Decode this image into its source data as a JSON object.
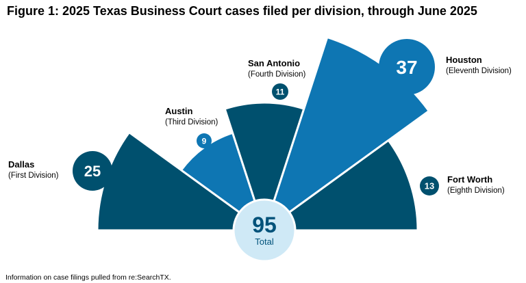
{
  "title": "Figure 1: 2025 Texas Business Court cases filed per division, through June 2025",
  "footnote": "Information on case filings pulled from re:SearchTX.",
  "colors": {
    "dark": "#00506e",
    "medium": "#0e76b3",
    "total_circle": "#cfe9f6",
    "total_text": "#00527a"
  },
  "chart_data": {
    "type": "pie",
    "title": "Figure 1: 2025 Texas Business Court cases filed per division, through June 2025",
    "total": {
      "value": 95,
      "label": "Total"
    },
    "categories": [
      "Dallas",
      "Austin",
      "San Antonio",
      "Houston",
      "Fort Worth"
    ],
    "subtitles": [
      "(First Division)",
      "(Third Division)",
      "(Fourth Division)",
      "(Eleventh Division)",
      "(Eighth Division)"
    ],
    "values": [
      25,
      9,
      11,
      37,
      13
    ],
    "segment_colors": [
      "#00506e",
      "#0e76b3",
      "#00506e",
      "#0e76b3",
      "#00506e"
    ]
  }
}
